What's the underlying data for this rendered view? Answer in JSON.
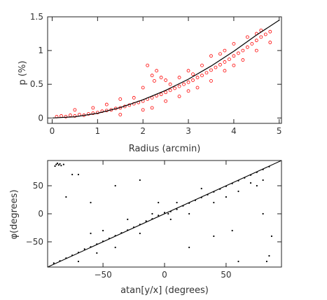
{
  "chart_data": [
    {
      "type": "scatter",
      "xlabel": "Radius (arcmin)",
      "ylabel": "p (%)",
      "xlim": [
        -0.1,
        5.05
      ],
      "ylim": [
        -0.08,
        1.5
      ],
      "x_ticks": [
        0,
        1,
        2,
        3,
        4,
        5
      ],
      "x_tick_labels": [
        "0",
        "1",
        "2",
        "3",
        "4",
        "5"
      ],
      "y_ticks": [
        0,
        0.5,
        1,
        1.5
      ],
      "y_tick_labels": [
        "0",
        "0.5",
        "1",
        "1.5"
      ],
      "grid": false,
      "marker": "open-circle",
      "colors": {
        "points": "#ff0000",
        "fit": "#000000"
      },
      "series": [
        {
          "points": [
            [
              0.1,
              0.02
            ],
            [
              0.2,
              0.03
            ],
            [
              0.3,
              0.02
            ],
            [
              0.4,
              0.04
            ],
            [
              0.5,
              0.03
            ],
            [
              0.6,
              0.05
            ],
            [
              0.7,
              0.04
            ],
            [
              0.8,
              0.06
            ],
            [
              0.9,
              0.07
            ],
            [
              1.0,
              0.08
            ],
            [
              1.1,
              0.1
            ],
            [
              1.2,
              0.11
            ],
            [
              1.3,
              0.12
            ],
            [
              1.4,
              0.14
            ],
            [
              1.5,
              0.15
            ],
            [
              1.6,
              0.17
            ],
            [
              1.7,
              0.19
            ],
            [
              1.8,
              0.21
            ],
            [
              1.9,
              0.23
            ],
            [
              2.0,
              0.25
            ],
            [
              2.1,
              0.28
            ],
            [
              2.2,
              0.3
            ],
            [
              2.3,
              0.33
            ],
            [
              2.4,
              0.35
            ],
            [
              2.5,
              0.38
            ],
            [
              2.6,
              0.41
            ],
            [
              2.7,
              0.44
            ],
            [
              2.8,
              0.47
            ],
            [
              2.9,
              0.5
            ],
            [
              3.0,
              0.53
            ],
            [
              3.1,
              0.56
            ],
            [
              3.2,
              0.6
            ],
            [
              3.3,
              0.63
            ],
            [
              3.4,
              0.67
            ],
            [
              3.5,
              0.71
            ],
            [
              3.6,
              0.75
            ],
            [
              3.7,
              0.79
            ],
            [
              3.8,
              0.83
            ],
            [
              3.9,
              0.87
            ],
            [
              4.0,
              0.92
            ],
            [
              4.1,
              0.96
            ],
            [
              4.2,
              1.0
            ],
            [
              4.3,
              1.05
            ],
            [
              4.4,
              1.1
            ],
            [
              4.5,
              1.15
            ],
            [
              4.6,
              1.2
            ],
            [
              4.7,
              1.24
            ],
            [
              4.8,
              1.28
            ],
            [
              0.5,
              0.12
            ],
            [
              0.9,
              0.15
            ],
            [
              1.2,
              0.2
            ],
            [
              1.5,
              0.28
            ],
            [
              1.8,
              0.3
            ],
            [
              2.0,
              0.45
            ],
            [
              2.1,
              0.78
            ],
            [
              2.2,
              0.63
            ],
            [
              2.25,
              0.55
            ],
            [
              2.3,
              0.7
            ],
            [
              2.4,
              0.6
            ],
            [
              2.5,
              0.56
            ],
            [
              2.6,
              0.5
            ],
            [
              2.8,
              0.6
            ],
            [
              3.0,
              0.7
            ],
            [
              3.1,
              0.65
            ],
            [
              3.3,
              0.78
            ],
            [
              3.5,
              0.92
            ],
            [
              3.7,
              0.95
            ],
            [
              3.8,
              1.0
            ],
            [
              4.0,
              1.1
            ],
            [
              4.3,
              1.2
            ],
            [
              4.5,
              1.25
            ],
            [
              4.6,
              1.3
            ],
            [
              1.5,
              0.05
            ],
            [
              2.0,
              0.12
            ],
            [
              2.2,
              0.15
            ],
            [
              2.5,
              0.25
            ],
            [
              2.8,
              0.32
            ],
            [
              3.0,
              0.4
            ],
            [
              3.2,
              0.45
            ],
            [
              3.5,
              0.55
            ],
            [
              3.8,
              0.7
            ],
            [
              4.0,
              0.78
            ],
            [
              4.2,
              0.86
            ],
            [
              4.5,
              1.0
            ],
            [
              4.8,
              1.12
            ]
          ]
        }
      ],
      "fit_curve": [
        [
          0.0,
          0.0
        ],
        [
          0.5,
          0.018
        ],
        [
          1.0,
          0.07
        ],
        [
          1.5,
          0.155
        ],
        [
          2.0,
          0.27
        ],
        [
          2.5,
          0.41
        ],
        [
          3.0,
          0.575
        ],
        [
          3.5,
          0.77
        ],
        [
          4.0,
          0.99
        ],
        [
          4.5,
          1.23
        ],
        [
          5.0,
          1.45
        ]
      ]
    },
    {
      "type": "scatter",
      "xlabel": "atan[y/x] (degrees)",
      "ylabel": "φ(degrees)",
      "xlim": [
        -95,
        95
      ],
      "ylim": [
        -95,
        95
      ],
      "x_ticks": [
        -50,
        0,
        50
      ],
      "x_tick_labels": [
        "−50",
        "0",
        "50"
      ],
      "y_ticks": [
        -50,
        0,
        50
      ],
      "y_tick_labels": [
        "−50",
        "0",
        "50"
      ],
      "grid": false,
      "marker": "dot",
      "colors": {
        "points": "#000000",
        "line": "#000000"
      },
      "series": [
        {
          "points": [
            [
              -90,
              -88
            ],
            [
              -85,
              -84
            ],
            [
              -80,
              -79
            ],
            [
              -75,
              -74
            ],
            [
              -70,
              -69
            ],
            [
              -65,
              -63
            ],
            [
              -60,
              -59
            ],
            [
              -55,
              -54
            ],
            [
              -50,
              -49
            ],
            [
              -45,
              -44
            ],
            [
              -40,
              -39
            ],
            [
              -35,
              -34
            ],
            [
              -30,
              -29
            ],
            [
              -25,
              -24
            ],
            [
              -20,
              -19
            ],
            [
              -15,
              -13
            ],
            [
              -10,
              -9
            ],
            [
              -5,
              -3
            ],
            [
              5,
              4
            ],
            [
              10,
              8
            ],
            [
              15,
              14
            ],
            [
              20,
              19
            ],
            [
              25,
              24
            ],
            [
              30,
              29
            ],
            [
              35,
              34
            ],
            [
              40,
              39
            ],
            [
              45,
              44
            ],
            [
              50,
              49
            ],
            [
              55,
              54
            ],
            [
              60,
              59
            ],
            [
              65,
              64
            ],
            [
              70,
              69
            ],
            [
              75,
              74
            ],
            [
              80,
              79
            ],
            [
              85,
              84
            ],
            [
              -88,
              88
            ],
            [
              -87,
              90
            ],
            [
              -86,
              87
            ],
            [
              -85,
              89
            ],
            [
              -84,
              86
            ],
            [
              -89,
              85
            ],
            [
              -82,
              88
            ],
            [
              -70,
              70
            ],
            [
              -60,
              -35
            ],
            [
              -55,
              -70
            ],
            [
              -50,
              -30
            ],
            [
              -40,
              -60
            ],
            [
              -30,
              -10
            ],
            [
              -20,
              -35
            ],
            [
              -10,
              0
            ],
            [
              -5,
              20
            ],
            [
              0,
              2
            ],
            [
              3,
              0
            ],
            [
              5,
              -10
            ],
            [
              10,
              20
            ],
            [
              20,
              0
            ],
            [
              30,
              45
            ],
            [
              40,
              20
            ],
            [
              50,
              30
            ],
            [
              60,
              40
            ],
            [
              70,
              55
            ],
            [
              75,
              50
            ],
            [
              80,
              60
            ],
            [
              83,
              -85
            ],
            [
              85,
              -75
            ],
            [
              87,
              -40
            ],
            [
              80,
              0
            ],
            [
              -80,
              30
            ],
            [
              -75,
              70
            ],
            [
              -70,
              -85
            ],
            [
              -60,
              20
            ],
            [
              -40,
              50
            ],
            [
              -20,
              60
            ],
            [
              20,
              -60
            ],
            [
              40,
              -40
            ],
            [
              55,
              -30
            ],
            [
              60,
              -85
            ]
          ]
        }
      ],
      "fit_line": [
        [
          -95,
          -95
        ],
        [
          95,
          95
        ]
      ]
    }
  ]
}
